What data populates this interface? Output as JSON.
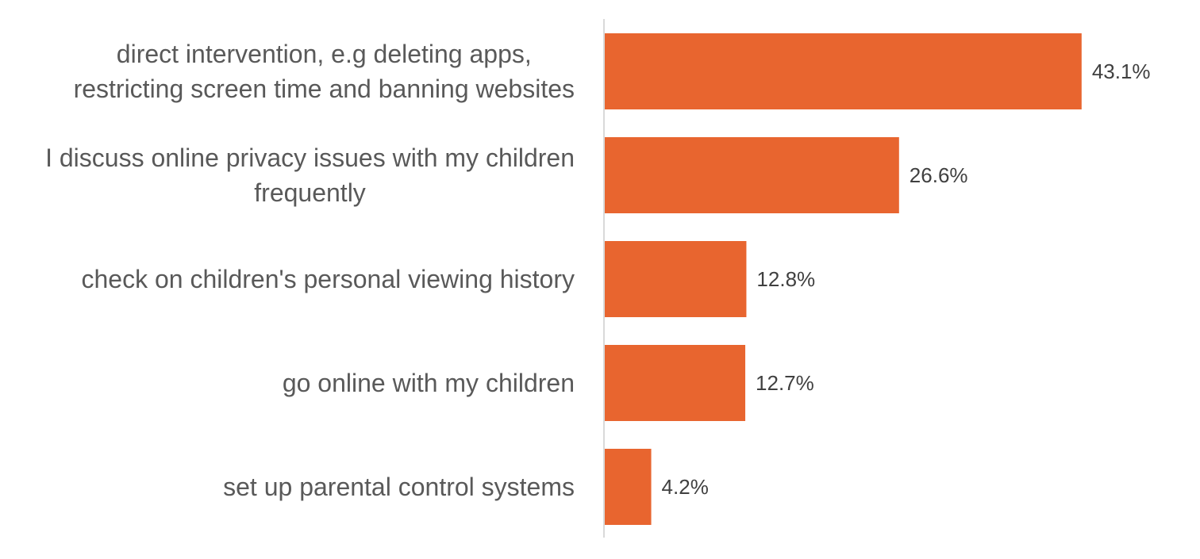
{
  "chart_data": {
    "type": "bar",
    "orientation": "horizontal",
    "categories": [
      [
        "direct intervention, e.g deleting apps,",
        "restricting screen time and banning websites"
      ],
      [
        "I discuss online privacy issues with my children",
        "frequently"
      ],
      [
        "check on children's personal viewing history"
      ],
      [
        "go online with my children"
      ],
      [
        "set up parental control systems"
      ]
    ],
    "values": [
      43.1,
      26.6,
      12.8,
      12.7,
      4.2
    ],
    "value_labels": [
      "43.1%",
      "26.6%",
      "12.8%",
      "12.7%",
      "4.2%"
    ],
    "title": "",
    "xlabel": "",
    "ylabel": "",
    "xlim": [
      0,
      50
    ],
    "grid": false,
    "legend": "none",
    "bar_color": "#E8652F",
    "axis_color": "#D9D9D9"
  }
}
